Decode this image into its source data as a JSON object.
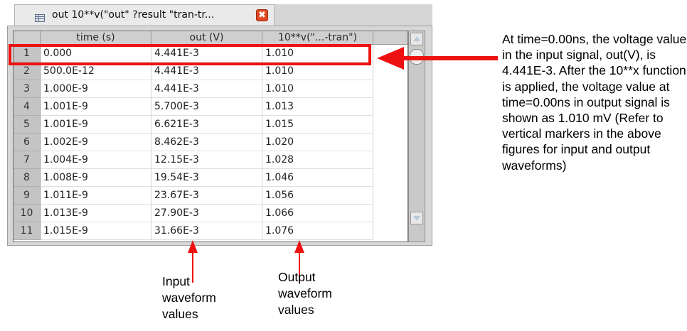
{
  "window": {
    "tab_title": "out 10**v(\"out\" ?result \"tran-tr...",
    "close_glyph": "✖"
  },
  "table": {
    "columns": [
      "time (s)",
      "out (V)",
      "10**v(\"...-tran\")"
    ],
    "rows": [
      {
        "index": "1",
        "time": "0.000",
        "out": "4.441E-3",
        "result": "1.010"
      },
      {
        "index": "2",
        "time": "500.0E-12",
        "out": "4.441E-3",
        "result": "1.010"
      },
      {
        "index": "3",
        "time": "1.000E-9",
        "out": "4.441E-3",
        "result": "1.010"
      },
      {
        "index": "4",
        "time": "1.001E-9",
        "out": "5.700E-3",
        "result": "1.013"
      },
      {
        "index": "5",
        "time": "1.001E-9",
        "out": "6.621E-3",
        "result": "1.015"
      },
      {
        "index": "6",
        "time": "1.002E-9",
        "out": "8.462E-3",
        "result": "1.020"
      },
      {
        "index": "7",
        "time": "1.004E-9",
        "out": "12.15E-3",
        "result": "1.028"
      },
      {
        "index": "8",
        "time": "1.008E-9",
        "out": "19.54E-3",
        "result": "1.046"
      },
      {
        "index": "9",
        "time": "1.011E-9",
        "out": "23.67E-3",
        "result": "1.056"
      },
      {
        "index": "10",
        "time": "1.013E-9",
        "out": "27.90E-3",
        "result": "1.066"
      },
      {
        "index": "11",
        "time": "1.015E-9",
        "out": "31.66E-3",
        "result": "1.076"
      }
    ]
  },
  "annotations": {
    "note": "At time=0.00ns, the voltage value in the input signal, out(V), is 4.441E-3. After the 10**x function is applied, the voltage value at time=0.00ns in output signal is shown as 1.010 mV (Refer to vertical markers in the above figures for input and output waveforms)",
    "input_label": [
      "Input",
      "waveform",
      "values"
    ],
    "output_label": [
      "Output",
      "waveform",
      "values"
    ]
  },
  "colors": {
    "accent_red": "#ee1111",
    "close_button": "#e14b22"
  }
}
